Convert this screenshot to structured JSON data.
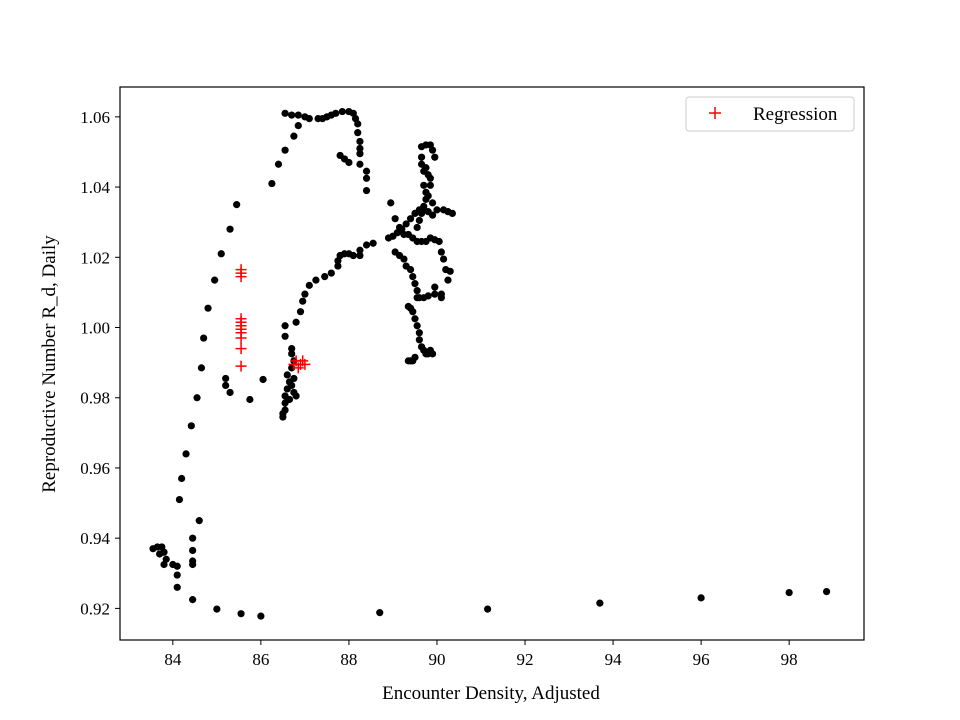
{
  "chart_data": {
    "type": "scatter",
    "xlabel": "Encounter Density, Adjusted",
    "ylabel": "Reproductive Number R_d, Daily",
    "xlim": [
      82.8,
      99.7
    ],
    "ylim": [
      0.911,
      1.0685
    ],
    "xticks": [
      84,
      86,
      88,
      90,
      92,
      94,
      96,
      98
    ],
    "yticks": [
      0.92,
      0.94,
      0.96,
      0.98,
      1.0,
      1.02,
      1.04,
      1.06
    ],
    "xtick_labels": [
      "84",
      "86",
      "88",
      "90",
      "92",
      "94",
      "96",
      "98"
    ],
    "ytick_labels": [
      "0.92",
      "0.94",
      "0.96",
      "0.98",
      "1.00",
      "1.02",
      "1.04",
      "1.06"
    ],
    "grid": false,
    "legend_position": "top-right",
    "series": [
      {
        "marker": "dot",
        "color": "#000000",
        "points": [
          [
            83.55,
            0.937
          ],
          [
            83.65,
            0.9375
          ],
          [
            83.7,
            0.9355
          ],
          [
            83.75,
            0.9375
          ],
          [
            83.8,
            0.9325
          ],
          [
            83.8,
            0.936
          ],
          [
            83.85,
            0.934
          ],
          [
            84.0,
            0.9325
          ],
          [
            84.1,
            0.9295
          ],
          [
            84.1,
            0.926
          ],
          [
            84.1,
            0.932
          ],
          [
            84.45,
            0.9325
          ],
          [
            84.45,
            0.9335
          ],
          [
            84.45,
            0.9365
          ],
          [
            84.45,
            0.94
          ],
          [
            84.45,
            0.9225
          ],
          [
            84.6,
            0.945
          ],
          [
            84.15,
            0.951
          ],
          [
            84.2,
            0.957
          ],
          [
            84.3,
            0.964
          ],
          [
            84.42,
            0.972
          ],
          [
            84.55,
            0.98
          ],
          [
            84.65,
            0.9885
          ],
          [
            84.7,
            0.997
          ],
          [
            84.8,
            1.0055
          ],
          [
            84.95,
            1.0135
          ],
          [
            85.1,
            1.021
          ],
          [
            85.3,
            1.028
          ],
          [
            85.45,
            1.035
          ],
          [
            85.2,
            0.9855
          ],
          [
            85.2,
            0.9835
          ],
          [
            85.3,
            0.9815
          ],
          [
            85.75,
            0.9795
          ],
          [
            86.05,
            0.9852
          ],
          [
            85.0,
            0.9198
          ],
          [
            85.55,
            0.9185
          ],
          [
            86.0,
            0.9178
          ],
          [
            88.7,
            0.9188
          ],
          [
            91.15,
            0.9198
          ],
          [
            93.7,
            0.9215
          ],
          [
            96.0,
            0.923
          ],
          [
            98.0,
            0.9245
          ],
          [
            98.85,
            0.9248
          ],
          [
            86.25,
            1.041
          ],
          [
            86.4,
            1.0465
          ],
          [
            86.55,
            1.0505
          ],
          [
            86.75,
            1.0545
          ],
          [
            86.85,
            1.0575
          ],
          [
            86.55,
            1.061
          ],
          [
            86.7,
            1.0605
          ],
          [
            86.85,
            1.0605
          ],
          [
            87.0,
            1.06
          ],
          [
            87.1,
            1.0595
          ],
          [
            87.3,
            1.0595
          ],
          [
            87.4,
            1.0595
          ],
          [
            87.5,
            1.06
          ],
          [
            87.6,
            1.0605
          ],
          [
            87.7,
            1.061
          ],
          [
            87.85,
            1.0615
          ],
          [
            88.0,
            1.0615
          ],
          [
            88.1,
            1.061
          ],
          [
            88.15,
            1.0595
          ],
          [
            88.2,
            1.058
          ],
          [
            88.2,
            1.0555
          ],
          [
            88.25,
            1.053
          ],
          [
            88.25,
            1.051
          ],
          [
            88.25,
            1.0495
          ],
          [
            88.25,
            1.0465
          ],
          [
            87.8,
            1.049
          ],
          [
            87.9,
            1.048
          ],
          [
            88.0,
            1.047
          ],
          [
            88.4,
            1.0445
          ],
          [
            88.4,
            1.0425
          ],
          [
            88.4,
            1.039
          ],
          [
            86.5,
            0.9745
          ],
          [
            86.5,
            0.9755
          ],
          [
            86.55,
            0.9765
          ],
          [
            86.55,
            0.9785
          ],
          [
            86.55,
            0.9805
          ],
          [
            86.6,
            0.9825
          ],
          [
            86.65,
            0.9845
          ],
          [
            86.7,
            0.9835
          ],
          [
            86.75,
            0.9855
          ],
          [
            86.6,
            0.9865
          ],
          [
            86.7,
            0.9885
          ],
          [
            86.75,
            0.9905
          ],
          [
            86.7,
            0.9925
          ],
          [
            86.7,
            0.994
          ],
          [
            86.55,
            0.9975
          ],
          [
            86.55,
            1.0005
          ],
          [
            86.75,
            0.9815
          ],
          [
            86.8,
            0.9805
          ],
          [
            86.65,
            0.9795
          ],
          [
            86.8,
            1.0015
          ],
          [
            86.9,
            1.0045
          ],
          [
            86.95,
            1.0075
          ],
          [
            87.0,
            1.0095
          ],
          [
            87.1,
            1.012
          ],
          [
            87.25,
            1.0135
          ],
          [
            87.45,
            1.0145
          ],
          [
            87.6,
            1.0155
          ],
          [
            87.75,
            1.0175
          ],
          [
            87.75,
            1.019
          ],
          [
            87.8,
            1.0205
          ],
          [
            87.9,
            1.021
          ],
          [
            88.0,
            1.021
          ],
          [
            88.1,
            1.0205
          ],
          [
            88.25,
            1.0205
          ],
          [
            88.25,
            1.022
          ],
          [
            88.4,
            1.0235
          ],
          [
            88.55,
            1.024
          ],
          [
            88.9,
            1.0255
          ],
          [
            89.0,
            1.026
          ],
          [
            89.1,
            1.027
          ],
          [
            89.2,
            1.028
          ],
          [
            89.3,
            1.0295
          ],
          [
            89.4,
            1.031
          ],
          [
            89.5,
            1.0325
          ],
          [
            89.6,
            1.0335
          ],
          [
            89.7,
            1.0335
          ],
          [
            89.8,
            1.033
          ],
          [
            89.9,
            1.032
          ],
          [
            90.0,
            1.0335
          ],
          [
            90.15,
            1.0335
          ],
          [
            90.25,
            1.033
          ],
          [
            90.35,
            1.0325
          ],
          [
            88.95,
            1.0355
          ],
          [
            89.05,
            1.031
          ],
          [
            89.15,
            1.0285
          ],
          [
            89.25,
            1.0265
          ],
          [
            89.35,
            1.0265
          ],
          [
            89.45,
            1.0255
          ],
          [
            89.55,
            1.0245
          ],
          [
            89.65,
            1.0245
          ],
          [
            89.75,
            1.0245
          ],
          [
            89.85,
            1.0255
          ],
          [
            89.95,
            1.025
          ],
          [
            90.05,
            1.0245
          ],
          [
            90.1,
            1.0215
          ],
          [
            90.15,
            1.0195
          ],
          [
            90.2,
            1.0165
          ],
          [
            90.25,
            1.0135
          ],
          [
            90.3,
            1.016
          ],
          [
            90.1,
            1.0095
          ],
          [
            90.1,
            1.0085
          ],
          [
            89.95,
            1.0115
          ],
          [
            89.95,
            1.0095
          ],
          [
            89.8,
            1.009
          ],
          [
            89.7,
            1.0085
          ],
          [
            89.6,
            1.0085
          ],
          [
            89.35,
            1.006
          ],
          [
            89.4,
            1.0055
          ],
          [
            89.45,
            1.0045
          ],
          [
            89.5,
            1.0025
          ],
          [
            89.55,
            1.0005
          ],
          [
            89.6,
            0.9985
          ],
          [
            89.6,
            0.9965
          ],
          [
            89.65,
            0.9945
          ],
          [
            89.7,
            0.9935
          ],
          [
            89.75,
            0.9925
          ],
          [
            89.8,
            0.9925
          ],
          [
            89.85,
            0.9935
          ],
          [
            89.9,
            0.9925
          ],
          [
            89.5,
            0.9915
          ],
          [
            89.45,
            0.9905
          ],
          [
            89.4,
            0.9905
          ],
          [
            89.35,
            0.9905
          ],
          [
            89.05,
            1.0215
          ],
          [
            89.15,
            1.0205
          ],
          [
            89.25,
            1.0195
          ],
          [
            89.3,
            1.0175
          ],
          [
            89.4,
            1.0165
          ],
          [
            89.45,
            1.0145
          ],
          [
            89.5,
            1.0125
          ],
          [
            89.55,
            1.0105
          ],
          [
            89.55,
            1.0085
          ],
          [
            89.65,
            1.0515
          ],
          [
            89.75,
            1.052
          ],
          [
            89.85,
            1.052
          ],
          [
            89.9,
            1.0505
          ],
          [
            89.95,
            1.0485
          ],
          [
            89.65,
            1.0485
          ],
          [
            89.65,
            1.0465
          ],
          [
            89.7,
            1.0445
          ],
          [
            89.8,
            1.0435
          ],
          [
            89.85,
            1.0425
          ],
          [
            89.85,
            1.0405
          ],
          [
            89.75,
            1.0385
          ],
          [
            89.75,
            1.0365
          ],
          [
            89.7,
            1.0345
          ],
          [
            89.65,
            1.0325
          ],
          [
            89.6,
            1.0305
          ],
          [
            89.55,
            1.0285
          ],
          [
            89.75,
            1.0455
          ],
          [
            89.7,
            1.0405
          ],
          [
            89.8,
            1.0375
          ],
          [
            89.9,
            1.0355
          ]
        ]
      },
      {
        "name": "Regression",
        "marker": "plus",
        "color": "#ff0000",
        "points": [
          [
            85.55,
            1.0165
          ],
          [
            85.55,
            1.0155
          ],
          [
            85.55,
            1.0145
          ],
          [
            85.55,
            1.0025
          ],
          [
            85.55,
            1.0015
          ],
          [
            85.55,
            1.0005
          ],
          [
            85.55,
            0.9995
          ],
          [
            85.55,
            0.9985
          ],
          [
            85.55,
            0.997
          ],
          [
            85.55,
            0.994
          ],
          [
            85.55,
            0.989
          ],
          [
            86.75,
            0.9895
          ],
          [
            86.8,
            0.9905
          ],
          [
            86.85,
            0.9885
          ],
          [
            86.9,
            0.9895
          ],
          [
            86.95,
            0.9905
          ],
          [
            87.0,
            0.9895
          ]
        ]
      }
    ]
  }
}
